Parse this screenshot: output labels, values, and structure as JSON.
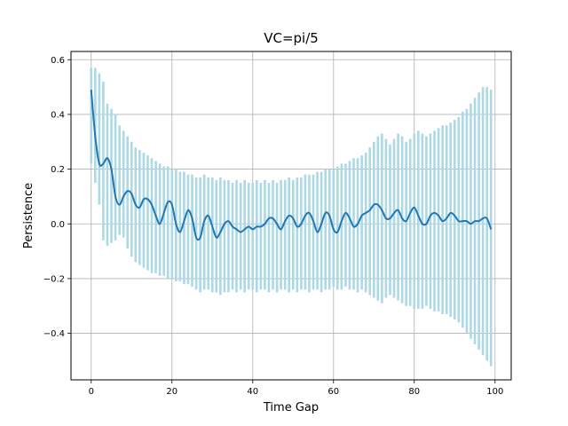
{
  "chart_data": {
    "type": "line",
    "title": "VC=pi/5",
    "xlabel": "Time Gap",
    "ylabel": "Persistence",
    "xlim": [
      -5,
      104
    ],
    "ylim": [
      -0.57,
      0.63
    ],
    "xticks": [
      0,
      20,
      40,
      60,
      80,
      100
    ],
    "xtick_labels": [
      "0",
      "20",
      "40",
      "60",
      "80",
      "100"
    ],
    "yticks": [
      -0.4,
      -0.2,
      0.0,
      0.2,
      0.4,
      0.6
    ],
    "ytick_labels": [
      "−0.4",
      "−0.2",
      "0.0",
      "0.2",
      "0.4",
      "0.6"
    ],
    "grid": true,
    "line_color": "#1f77b4",
    "errorbar_color": "#add8e6",
    "series": [
      {
        "x": [
          0,
          1,
          2,
          3,
          4,
          5,
          6,
          7,
          8,
          9,
          10,
          11,
          12,
          13,
          14,
          15,
          16,
          17,
          18,
          19,
          20,
          21,
          22,
          23,
          24,
          25,
          26,
          27,
          28,
          29,
          30,
          31,
          32,
          33,
          34,
          35,
          36,
          37,
          38,
          39,
          40,
          41,
          42,
          43,
          44,
          45,
          46,
          47,
          48,
          49,
          50,
          51,
          52,
          53,
          54,
          55,
          56,
          57,
          58,
          59,
          60,
          61,
          62,
          63,
          64,
          65,
          66,
          67,
          68,
          69,
          70,
          71,
          72,
          73,
          74,
          75,
          76,
          77,
          78,
          79,
          80,
          81,
          82,
          83,
          84,
          85,
          86,
          87,
          88,
          89,
          90,
          91,
          92,
          93,
          94,
          95,
          96,
          97,
          98,
          99
        ],
        "y": [
          0.49,
          0.32,
          0.22,
          0.22,
          0.24,
          0.2,
          0.1,
          0.07,
          0.1,
          0.12,
          0.11,
          0.07,
          0.06,
          0.09,
          0.09,
          0.07,
          0.03,
          0.0,
          0.04,
          0.08,
          0.07,
          0.0,
          -0.03,
          0.01,
          0.05,
          0.02,
          -0.05,
          -0.05,
          0.01,
          0.03,
          -0.01,
          -0.05,
          -0.03,
          0.0,
          0.01,
          -0.01,
          -0.02,
          -0.03,
          -0.02,
          -0.01,
          -0.02,
          -0.01,
          -0.01,
          0.0,
          0.02,
          0.02,
          0.0,
          -0.02,
          0.01,
          0.03,
          0.02,
          -0.01,
          0.0,
          0.03,
          0.04,
          0.01,
          -0.03,
          0.0,
          0.04,
          0.03,
          -0.02,
          -0.03,
          0.01,
          0.04,
          0.02,
          -0.01,
          0.0,
          0.03,
          0.04,
          0.05,
          0.07,
          0.07,
          0.05,
          0.02,
          0.02,
          0.04,
          0.05,
          0.02,
          0.01,
          0.04,
          0.06,
          0.03,
          0.0,
          0.0,
          0.03,
          0.04,
          0.03,
          0.01,
          0.02,
          0.04,
          0.03,
          0.01,
          0.01,
          0.01,
          0.0,
          0.01,
          0.01,
          0.02,
          0.02,
          -0.02
        ],
        "yerr_upper": [
          0.57,
          0.57,
          0.55,
          0.52,
          0.44,
          0.42,
          0.4,
          0.36,
          0.34,
          0.32,
          0.3,
          0.28,
          0.27,
          0.26,
          0.25,
          0.24,
          0.23,
          0.22,
          0.21,
          0.21,
          0.2,
          0.2,
          0.19,
          0.19,
          0.18,
          0.18,
          0.17,
          0.17,
          0.18,
          0.17,
          0.17,
          0.16,
          0.17,
          0.16,
          0.16,
          0.15,
          0.16,
          0.15,
          0.16,
          0.15,
          0.15,
          0.16,
          0.15,
          0.16,
          0.15,
          0.16,
          0.15,
          0.16,
          0.16,
          0.17,
          0.16,
          0.17,
          0.17,
          0.18,
          0.18,
          0.18,
          0.19,
          0.19,
          0.2,
          0.2,
          0.2,
          0.21,
          0.22,
          0.22,
          0.23,
          0.24,
          0.24,
          0.25,
          0.26,
          0.28,
          0.3,
          0.32,
          0.33,
          0.31,
          0.29,
          0.31,
          0.33,
          0.32,
          0.3,
          0.31,
          0.33,
          0.34,
          0.33,
          0.32,
          0.33,
          0.34,
          0.35,
          0.36,
          0.36,
          0.37,
          0.38,
          0.39,
          0.41,
          0.42,
          0.44,
          0.46,
          0.48,
          0.5,
          0.5,
          0.49
        ],
        "yerr_lower": [
          0.22,
          0.15,
          0.07,
          -0.06,
          -0.08,
          -0.07,
          -0.06,
          -0.04,
          -0.05,
          -0.09,
          -0.12,
          -0.14,
          -0.15,
          -0.16,
          -0.17,
          -0.18,
          -0.18,
          -0.19,
          -0.19,
          -0.2,
          -0.2,
          -0.21,
          -0.21,
          -0.22,
          -0.22,
          -0.23,
          -0.24,
          -0.25,
          -0.24,
          -0.24,
          -0.25,
          -0.25,
          -0.26,
          -0.25,
          -0.25,
          -0.24,
          -0.25,
          -0.24,
          -0.25,
          -0.24,
          -0.24,
          -0.25,
          -0.24,
          -0.24,
          -0.25,
          -0.24,
          -0.25,
          -0.24,
          -0.24,
          -0.25,
          -0.24,
          -0.25,
          -0.24,
          -0.24,
          -0.25,
          -0.24,
          -0.24,
          -0.25,
          -0.24,
          -0.24,
          -0.23,
          -0.24,
          -0.24,
          -0.23,
          -0.24,
          -0.24,
          -0.25,
          -0.24,
          -0.25,
          -0.26,
          -0.27,
          -0.28,
          -0.29,
          -0.27,
          -0.26,
          -0.27,
          -0.28,
          -0.29,
          -0.3,
          -0.3,
          -0.31,
          -0.31,
          -0.31,
          -0.3,
          -0.31,
          -0.32,
          -0.32,
          -0.33,
          -0.33,
          -0.34,
          -0.35,
          -0.36,
          -0.38,
          -0.4,
          -0.42,
          -0.44,
          -0.46,
          -0.48,
          -0.5,
          -0.52
        ]
      }
    ]
  }
}
